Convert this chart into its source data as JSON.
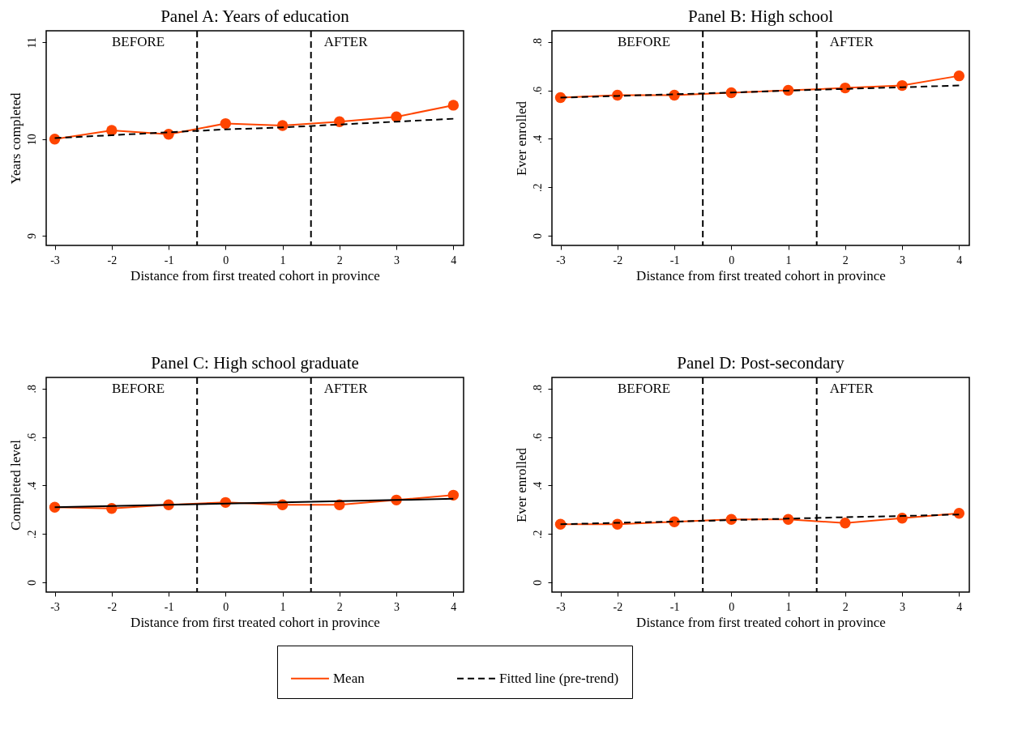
{
  "chart_data": [
    {
      "type": "line",
      "title": "Panel A: Years of education",
      "xlabel": "Distance from first treated cohort in province",
      "ylabel": "Years completed",
      "x": [
        -3,
        -2,
        -1,
        0,
        1,
        2,
        3,
        4
      ],
      "xlim": [
        -3.15,
        4.18
      ],
      "xticks": [
        -3,
        -2,
        -1,
        0,
        1,
        2,
        3,
        4
      ],
      "ylim": [
        8.9,
        11.12
      ],
      "yticks": [
        9,
        10,
        11
      ],
      "legend": "bottom",
      "grid": false,
      "series": [
        {
          "name": "Mean",
          "color": "#ff4500",
          "marker": "circle",
          "line_style": "solid",
          "values": [
            10.0,
            10.09,
            10.05,
            10.16,
            10.14,
            10.18,
            10.23,
            10.35
          ]
        },
        {
          "name": "Fitted line (pre-trend)",
          "color": "#000000",
          "marker": "none",
          "line_style": "dashed",
          "values": [
            10.01,
            10.04,
            10.07,
            10.1,
            10.12,
            10.15,
            10.18,
            10.21
          ]
        }
      ],
      "ref_lines": [
        {
          "axis": "x",
          "value": -0.5,
          "line_style": "dashed",
          "color": "#000000"
        },
        {
          "axis": "x",
          "value": 1.5,
          "line_style": "dashed",
          "color": "#000000"
        }
      ],
      "annotations": [
        "BEFORE",
        "AFTER"
      ]
    },
    {
      "type": "line",
      "title": "Panel B: High school",
      "xlabel": "Distance from first treated cohort in province",
      "ylabel": "Ever enrolled",
      "x": [
        -3,
        -2,
        -1,
        0,
        1,
        2,
        3,
        4
      ],
      "xlim": [
        -3.15,
        4.18
      ],
      "xticks": [
        -3,
        -2,
        -1,
        0,
        1,
        2,
        3,
        4
      ],
      "ylim": [
        -0.04,
        0.846
      ],
      "yticks": [
        0,
        {
          "value": 0.2,
          "label": ".2"
        },
        {
          "value": 0.4,
          "label": ".4"
        },
        {
          "value": 0.6,
          "label": ".6"
        },
        {
          "value": 0.8,
          "label": ".8"
        }
      ],
      "grid": false,
      "series": [
        {
          "color": "#ff4500",
          "marker": "circle",
          "line_style": "solid",
          "values": [
            0.57,
            0.58,
            0.58,
            0.59,
            0.6,
            0.61,
            0.62,
            0.66
          ]
        },
        {
          "color": "#000000",
          "marker": "none",
          "line_style": "dashed",
          "values": [
            0.57,
            0.577,
            0.584,
            0.591,
            0.599,
            0.606,
            0.613,
            0.62
          ]
        }
      ],
      "ref_lines": [
        {
          "axis": "x",
          "value": -0.5,
          "line_style": "dashed",
          "color": "#000000"
        },
        {
          "axis": "x",
          "value": 1.5,
          "line_style": "dashed",
          "color": "#000000"
        }
      ],
      "annotations": [
        "BEFORE",
        "AFTER"
      ]
    },
    {
      "type": "line",
      "title": "Panel C: High school graduate",
      "xlabel": "Distance from first treated cohort in province",
      "ylabel": "Completed level",
      "x": [
        -3,
        -2,
        -1,
        0,
        1,
        2,
        3,
        4
      ],
      "xlim": [
        -3.15,
        4.18
      ],
      "xticks": [
        -3,
        -2,
        -1,
        0,
        1,
        2,
        3,
        4
      ],
      "ylim": [
        -0.04,
        0.846
      ],
      "yticks": [
        0,
        {
          "value": 0.2,
          "label": ".2"
        },
        {
          "value": 0.4,
          "label": ".4"
        },
        {
          "value": 0.6,
          "label": ".6"
        },
        {
          "value": 0.8,
          "label": ".8"
        }
      ],
      "grid": false,
      "series": [
        {
          "color": "#ff4500",
          "marker": "circle",
          "line_style": "solid",
          "values": [
            0.31,
            0.305,
            0.32,
            0.33,
            0.32,
            0.32,
            0.34,
            0.36
          ]
        },
        {
          "color": "#000000",
          "marker": "none",
          "line_style": "solid",
          "values": [
            0.31,
            0.315,
            0.32,
            0.325,
            0.33,
            0.335,
            0.34,
            0.345
          ]
        }
      ],
      "ref_lines": [
        {
          "axis": "x",
          "value": -0.5,
          "line_style": "dashed",
          "color": "#000000"
        },
        {
          "axis": "x",
          "value": 1.5,
          "line_style": "dashed",
          "color": "#000000"
        }
      ],
      "annotations": [
        "BEFORE",
        "AFTER"
      ]
    },
    {
      "type": "line",
      "title": "Panel D: Post-secondary",
      "xlabel": "Distance from first treated cohort in province",
      "ylabel": "Ever enrolled",
      "x": [
        -3,
        -2,
        -1,
        0,
        1,
        2,
        3,
        4
      ],
      "xlim": [
        -3.15,
        4.18
      ],
      "xticks": [
        -3,
        -2,
        -1,
        0,
        1,
        2,
        3,
        4
      ],
      "ylim": [
        -0.04,
        0.846
      ],
      "yticks": [
        0,
        {
          "value": 0.2,
          "label": ".2"
        },
        {
          "value": 0.4,
          "label": ".4"
        },
        {
          "value": 0.6,
          "label": ".6"
        },
        {
          "value": 0.8,
          "label": ".8"
        }
      ],
      "grid": false,
      "series": [
        {
          "color": "#ff4500",
          "marker": "circle",
          "line_style": "solid",
          "values": [
            0.24,
            0.24,
            0.25,
            0.26,
            0.26,
            0.245,
            0.265,
            0.285
          ]
        },
        {
          "color": "#000000",
          "marker": "none",
          "line_style": "dashed",
          "values": [
            0.24,
            0.246,
            0.251,
            0.257,
            0.263,
            0.269,
            0.274,
            0.28
          ]
        }
      ],
      "ref_lines": [
        {
          "axis": "x",
          "value": -0.5,
          "line_style": "dashed",
          "color": "#000000"
        },
        {
          "axis": "x",
          "value": 1.5,
          "line_style": "dashed",
          "color": "#000000"
        }
      ],
      "annotations": [
        "BEFORE",
        "AFTER"
      ]
    }
  ]
}
